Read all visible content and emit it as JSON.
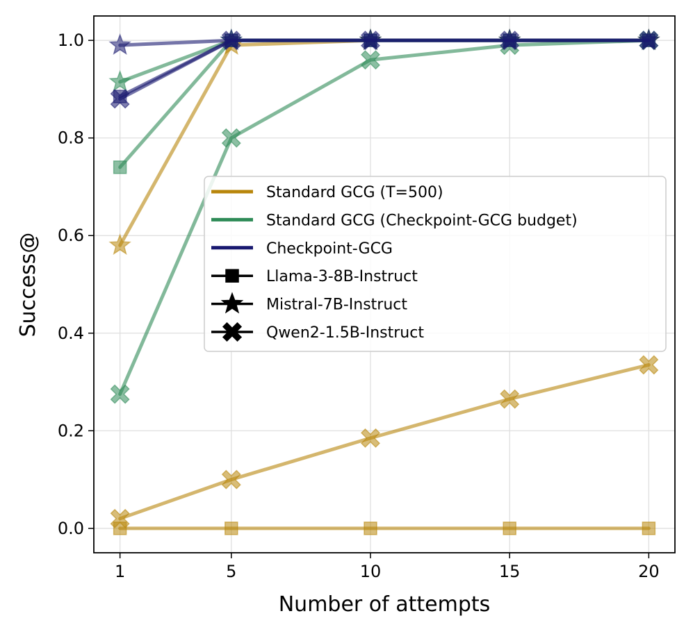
{
  "chart_data": {
    "type": "line",
    "title": "",
    "xlabel": "Number of attempts",
    "ylabel": "Success@",
    "x": [
      1,
      5,
      10,
      15,
      20
    ],
    "xticks": [
      1,
      5,
      10,
      15,
      20
    ],
    "xtick_labels": [
      "1",
      "5",
      "10",
      "15",
      "20"
    ],
    "xlim": [
      0.06,
      20.94
    ],
    "ylim": [
      -0.05,
      1.05
    ],
    "yticks": [
      0.0,
      0.2,
      0.4,
      0.6,
      0.8,
      1.0
    ],
    "ytick_labels": [
      "0.0",
      "0.2",
      "0.4",
      "0.6",
      "0.8",
      "1.0"
    ],
    "grid": true,
    "legend_position": "center-right",
    "colors": {
      "Standard GCG (T=500)": "#b8860b",
      "Standard GCG (Checkpoint-GCG budget)": "#2e8b57",
      "Checkpoint-GCG": "#191970"
    },
    "legend": [
      {
        "label": "Standard GCG (T=500)",
        "kind": "line",
        "color": "#b8860b"
      },
      {
        "label": "Standard GCG (Checkpoint-GCG budget)",
        "kind": "line",
        "color": "#2e8b57"
      },
      {
        "label": "Checkpoint-GCG",
        "kind": "line",
        "color": "#191970"
      },
      {
        "label": "Llama-3-8B-Instruct",
        "kind": "marker",
        "marker": "square",
        "color": "#000000"
      },
      {
        "label": "Mistral-7B-Instruct",
        "kind": "marker",
        "marker": "star",
        "color": "#000000"
      },
      {
        "label": "Qwen2-1.5B-Instruct",
        "kind": "marker",
        "marker": "x",
        "color": "#000000"
      }
    ],
    "series": [
      {
        "name": "Standard GCG (T=500) / Llama-3-8B-Instruct",
        "method": "Standard GCG (T=500)",
        "model": "Llama-3-8B-Instruct",
        "marker": "square",
        "values": [
          0.0,
          0.0,
          0.0,
          0.0,
          0.0
        ]
      },
      {
        "name": "Standard GCG (T=500) / Qwen2-1.5B-Instruct",
        "method": "Standard GCG (T=500)",
        "model": "Qwen2-1.5B-Instruct",
        "marker": "x",
        "values": [
          0.02,
          0.1,
          0.185,
          0.265,
          0.335
        ]
      },
      {
        "name": "Standard GCG (T=500) / Mistral-7B-Instruct",
        "method": "Standard GCG (T=500)",
        "model": "Mistral-7B-Instruct",
        "marker": "star",
        "values": [
          0.58,
          0.99,
          1.0,
          1.0,
          1.0
        ]
      },
      {
        "name": "Standard GCG (Checkpoint-GCG budget) / Qwen2-1.5B-Instruct",
        "method": "Standard GCG (Checkpoint-GCG budget)",
        "model": "Qwen2-1.5B-Instruct",
        "marker": "x",
        "values": [
          0.275,
          0.8,
          0.96,
          0.99,
          1.0
        ]
      },
      {
        "name": "Standard GCG (Checkpoint-GCG budget) / Llama-3-8B-Instruct",
        "method": "Standard GCG (Checkpoint-GCG budget)",
        "model": "Llama-3-8B-Instruct",
        "marker": "square",
        "values": [
          0.74,
          1.0,
          1.0,
          1.0,
          1.0
        ]
      },
      {
        "name": "Standard GCG (Checkpoint-GCG budget) / Mistral-7B-Instruct",
        "method": "Standard GCG (Checkpoint-GCG budget)",
        "model": "Mistral-7B-Instruct",
        "marker": "star",
        "values": [
          0.915,
          1.0,
          1.0,
          1.0,
          1.0
        ]
      },
      {
        "name": "Checkpoint-GCG / Llama-3-8B-Instruct",
        "method": "Checkpoint-GCG",
        "model": "Llama-3-8B-Instruct",
        "marker": "square",
        "values": [
          0.885,
          1.0,
          1.0,
          1.0,
          1.0
        ]
      },
      {
        "name": "Checkpoint-GCG / Qwen2-1.5B-Instruct",
        "method": "Checkpoint-GCG",
        "model": "Qwen2-1.5B-Instruct",
        "marker": "x",
        "values": [
          0.88,
          1.0,
          1.0,
          1.0,
          1.0
        ]
      },
      {
        "name": "Checkpoint-GCG / Mistral-7B-Instruct",
        "method": "Checkpoint-GCG",
        "model": "Mistral-7B-Instruct",
        "marker": "star",
        "values": [
          0.99,
          1.0,
          1.0,
          1.0,
          1.0
        ]
      }
    ]
  }
}
